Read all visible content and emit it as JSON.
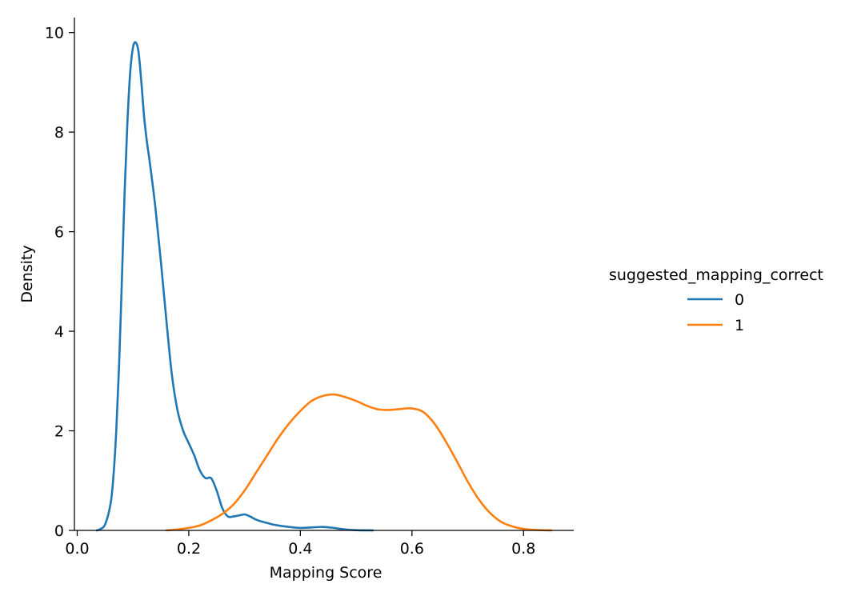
{
  "chart_data": {
    "type": "line",
    "xlabel": "Mapping Score",
    "ylabel": "Density",
    "xlim": [
      -0.005,
      0.89
    ],
    "ylim": [
      0,
      10.3
    ],
    "xticks": [
      0.0,
      0.2,
      0.4,
      0.6,
      0.8
    ],
    "xtick_labels": [
      "0.0",
      "0.2",
      "0.4",
      "0.6",
      "0.8"
    ],
    "yticks": [
      0,
      2,
      4,
      6,
      8,
      10
    ],
    "ytick_labels": [
      "0",
      "2",
      "4",
      "6",
      "8",
      "10"
    ],
    "grid": false,
    "legend": {
      "title": "suggested_mapping_correct",
      "placement": "right"
    },
    "series": [
      {
        "name": "0",
        "color": "#1f77b4",
        "x": [
          0.035,
          0.04,
          0.05,
          0.06,
          0.065,
          0.07,
          0.075,
          0.08,
          0.085,
          0.09,
          0.095,
          0.1,
          0.105,
          0.11,
          0.115,
          0.12,
          0.125,
          0.13,
          0.14,
          0.15,
          0.16,
          0.17,
          0.18,
          0.19,
          0.2,
          0.21,
          0.22,
          0.23,
          0.24,
          0.25,
          0.26,
          0.27,
          0.28,
          0.29,
          0.3,
          0.31,
          0.32,
          0.33,
          0.34,
          0.35,
          0.36,
          0.38,
          0.4,
          0.42,
          0.44,
          0.46,
          0.48,
          0.5,
          0.53
        ],
        "y": [
          0.0,
          0.02,
          0.12,
          0.55,
          1.1,
          2.0,
          3.3,
          5.0,
          6.8,
          8.2,
          9.2,
          9.7,
          9.8,
          9.6,
          9.0,
          8.3,
          7.8,
          7.4,
          6.5,
          5.4,
          4.2,
          3.1,
          2.4,
          2.0,
          1.75,
          1.5,
          1.2,
          1.05,
          1.05,
          0.8,
          0.45,
          0.28,
          0.28,
          0.3,
          0.32,
          0.28,
          0.22,
          0.18,
          0.15,
          0.12,
          0.1,
          0.07,
          0.05,
          0.06,
          0.07,
          0.05,
          0.02,
          0.005,
          0.0
        ]
      },
      {
        "name": "1",
        "color": "#ff7f0e",
        "x": [
          0.16,
          0.18,
          0.2,
          0.22,
          0.24,
          0.26,
          0.28,
          0.3,
          0.32,
          0.34,
          0.36,
          0.38,
          0.4,
          0.42,
          0.44,
          0.46,
          0.48,
          0.5,
          0.52,
          0.54,
          0.56,
          0.58,
          0.6,
          0.62,
          0.64,
          0.66,
          0.68,
          0.7,
          0.72,
          0.74,
          0.76,
          0.78,
          0.8,
          0.82,
          0.85
        ],
        "y": [
          0.0,
          0.02,
          0.05,
          0.1,
          0.2,
          0.33,
          0.52,
          0.8,
          1.15,
          1.5,
          1.85,
          2.15,
          2.4,
          2.6,
          2.7,
          2.73,
          2.68,
          2.6,
          2.5,
          2.43,
          2.42,
          2.44,
          2.45,
          2.38,
          2.15,
          1.8,
          1.4,
          0.98,
          0.62,
          0.35,
          0.17,
          0.08,
          0.03,
          0.01,
          0.0
        ]
      }
    ]
  }
}
